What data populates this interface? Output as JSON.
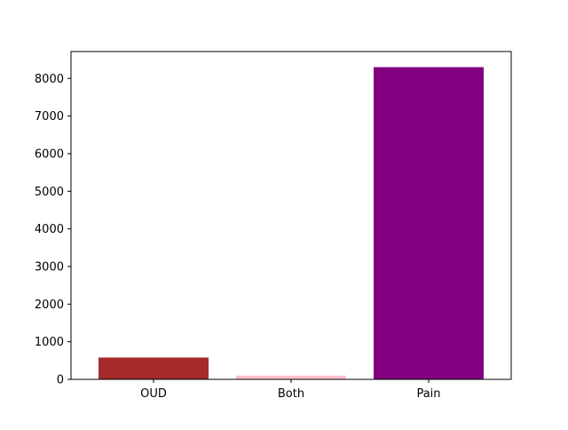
{
  "chart_data": {
    "type": "bar",
    "categories": [
      "OUD",
      "Both",
      "Pain"
    ],
    "values": [
      580,
      100,
      8300
    ],
    "colors": [
      "#a52a2a",
      "#ffc0cb",
      "#800080"
    ],
    "title": "",
    "xlabel": "",
    "ylabel": "",
    "ylim": [
      0,
      8715
    ],
    "yticks": [
      0,
      1000,
      2000,
      3000,
      4000,
      5000,
      6000,
      7000,
      8000
    ],
    "grid": false,
    "legend": "none"
  }
}
